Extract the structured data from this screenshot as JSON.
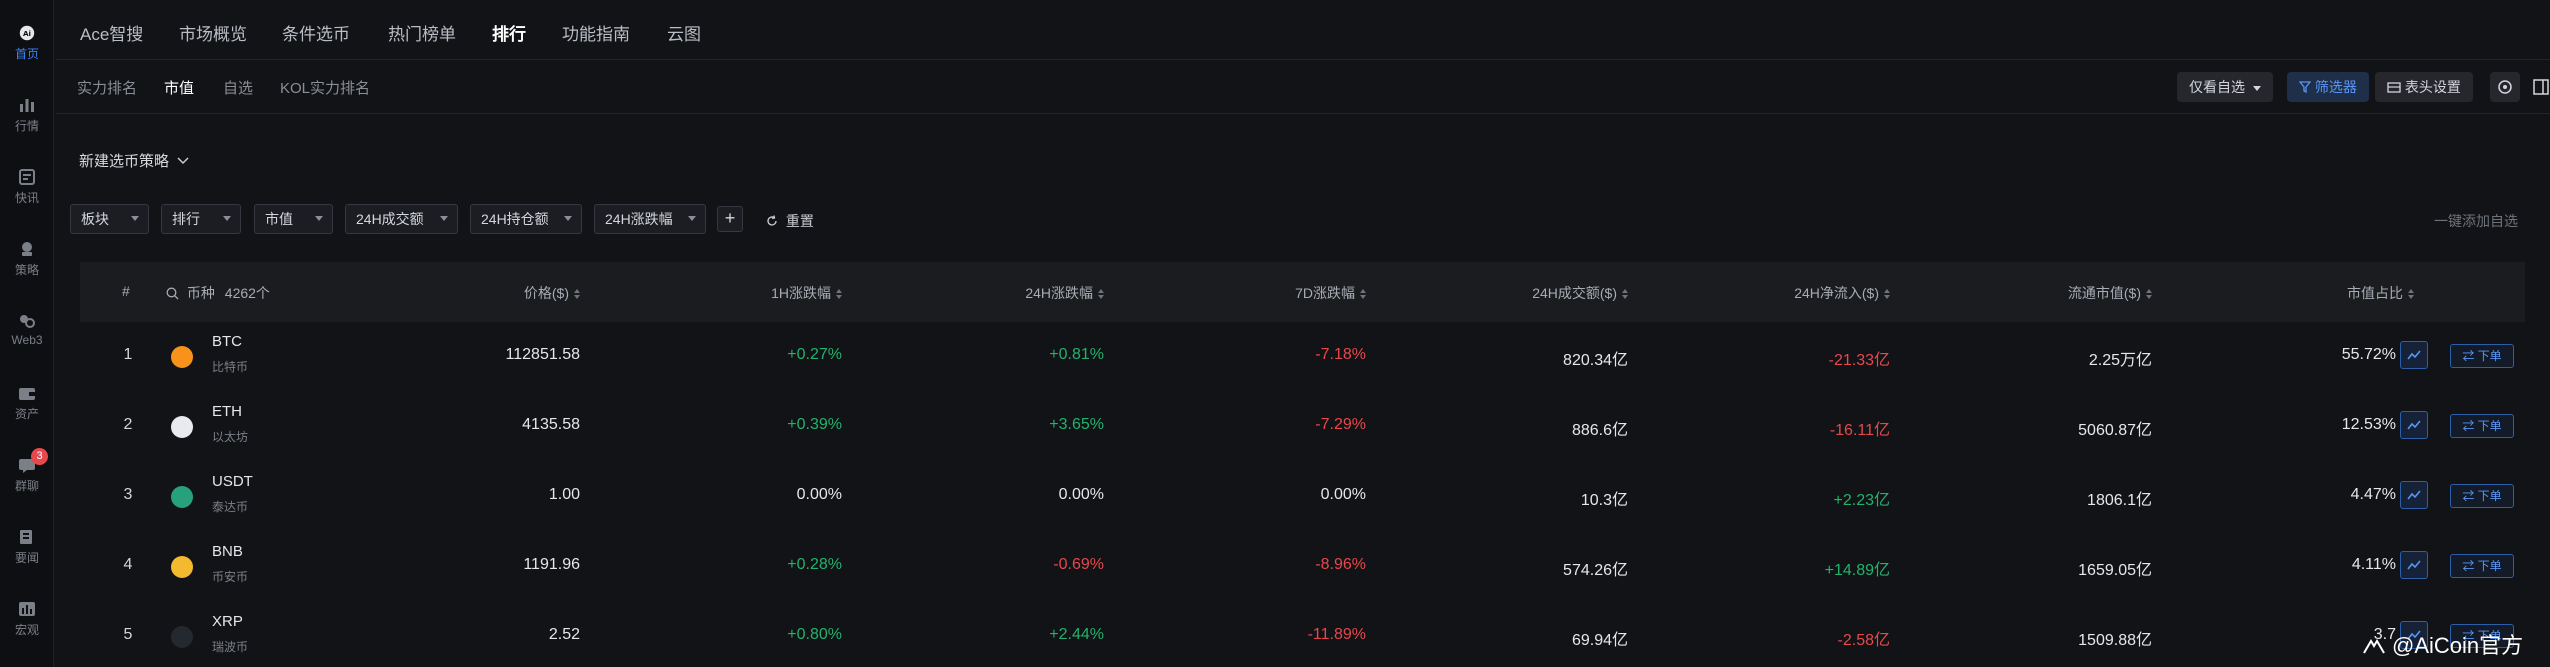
{
  "sidebar": {
    "items": [
      {
        "label": "首页",
        "icon": "home-icon",
        "active": true
      },
      {
        "label": "行情",
        "icon": "market-icon"
      },
      {
        "label": "快讯",
        "icon": "news-icon"
      },
      {
        "label": "策略",
        "icon": "strategy-icon"
      },
      {
        "label": "Web3",
        "icon": "web3-icon"
      },
      {
        "label": "资产",
        "icon": "wallet-icon"
      },
      {
        "label": "群聊",
        "icon": "chat-icon",
        "badge": "3"
      },
      {
        "label": "要闻",
        "icon": "headline-icon"
      },
      {
        "label": "宏观",
        "icon": "macro-icon"
      }
    ]
  },
  "topnav": {
    "tabs": [
      "Ace智搜",
      "市场概览",
      "条件选币",
      "热门榜单",
      "排行",
      "功能指南",
      "云图"
    ],
    "active": "排行"
  },
  "subnav": {
    "tabs": [
      "实力排名",
      "市值",
      "自选",
      "KOL实力排名"
    ],
    "active": "市值",
    "watch_only": "仅看自选",
    "filter": "筛选器",
    "header_settings": "表头设置"
  },
  "strategy_label": "新建选币策略",
  "filters": {
    "pills": [
      "板块",
      "排行",
      "市值",
      "24H成交额",
      "24H持仓额",
      "24H涨跌幅"
    ],
    "plus": "+",
    "reset": "重置",
    "one_click_add": "一键添加自选"
  },
  "table": {
    "headers": {
      "rank": "#",
      "coin": "币种",
      "coin_count": "4262个",
      "price": "价格($)",
      "h1": "1H涨跌幅",
      "h24": "24H涨跌幅",
      "d7": "7D涨跌幅",
      "vol": "24H成交额($)",
      "inflow": "24H净流入($)",
      "mcap": "流通市值($)",
      "share": "市值占比"
    },
    "order_label": "⇄ 下单",
    "rows": [
      {
        "rank": "1",
        "symbol": "BTC",
        "name": "比特币",
        "price": "112851.58",
        "h1": "+0.27%",
        "h24": "+0.81%",
        "d7": "-7.18%",
        "vol": "820.34亿",
        "inflow": "-21.33亿",
        "mcap": "2.25万亿",
        "share": "55.72%",
        "logo_color": "#f7931a"
      },
      {
        "rank": "2",
        "symbol": "ETH",
        "name": "以太坊",
        "price": "4135.58",
        "h1": "+0.39%",
        "h24": "+3.65%",
        "d7": "-7.29%",
        "vol": "886.6亿",
        "inflow": "-16.11亿",
        "mcap": "5060.87亿",
        "share": "12.53%",
        "logo_color": "#e8eaf0"
      },
      {
        "rank": "3",
        "symbol": "USDT",
        "name": "泰达币",
        "price": "1.00",
        "h1": "0.00%",
        "h24": "0.00%",
        "d7": "0.00%",
        "vol": "10.3亿",
        "inflow": "+2.23亿",
        "mcap": "1806.1亿",
        "share": "4.47%",
        "logo_color": "#26a17b"
      },
      {
        "rank": "4",
        "symbol": "BNB",
        "name": "币安币",
        "price": "1191.96",
        "h1": "+0.28%",
        "h24": "-0.69%",
        "d7": "-8.96%",
        "vol": "574.26亿",
        "inflow": "+14.89亿",
        "mcap": "1659.05亿",
        "share": "4.11%",
        "logo_color": "#f3ba2f"
      },
      {
        "rank": "5",
        "symbol": "XRP",
        "name": "瑞波币",
        "price": "2.52",
        "h1": "+0.80%",
        "h24": "+2.44%",
        "d7": "-11.89%",
        "vol": "69.94亿",
        "inflow": "-2.58亿",
        "mcap": "1509.88亿",
        "share": "3.7",
        "logo_color": "#23292f"
      }
    ]
  },
  "watermark": "@AiCoin官方",
  "colors": {
    "positive": "#23b26d",
    "negative": "#e5484d",
    "accent": "#3b82f6"
  }
}
